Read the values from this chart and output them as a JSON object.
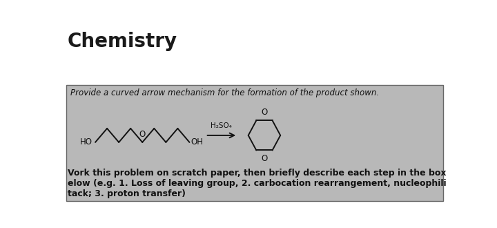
{
  "title": "Chemistry",
  "title_fontsize": 20,
  "title_weight": "bold",
  "title_color": "#1a1a1a",
  "bg_color": "#ffffff",
  "box_bg_color": "#b8b8b8",
  "box_text_top": "Provide a curved arrow mechanism for the formation of the product shown.",
  "box_text_top_color": "#111111",
  "box_text_bottom": "Vork this problem on scratch paper, then briefly describe each step in the box\nelow (e.g. 1. Loss of leaving group, 2. carbocation rearrangement, nucleophili\ntack; 3. proton transfer)",
  "box_text_bottom_color": "#111111",
  "reagent_label": "H₂SO₄",
  "ho_label": "HO",
  "oh_label": "OH",
  "figsize": [
    7.2,
    3.3
  ],
  "dpi": 100
}
